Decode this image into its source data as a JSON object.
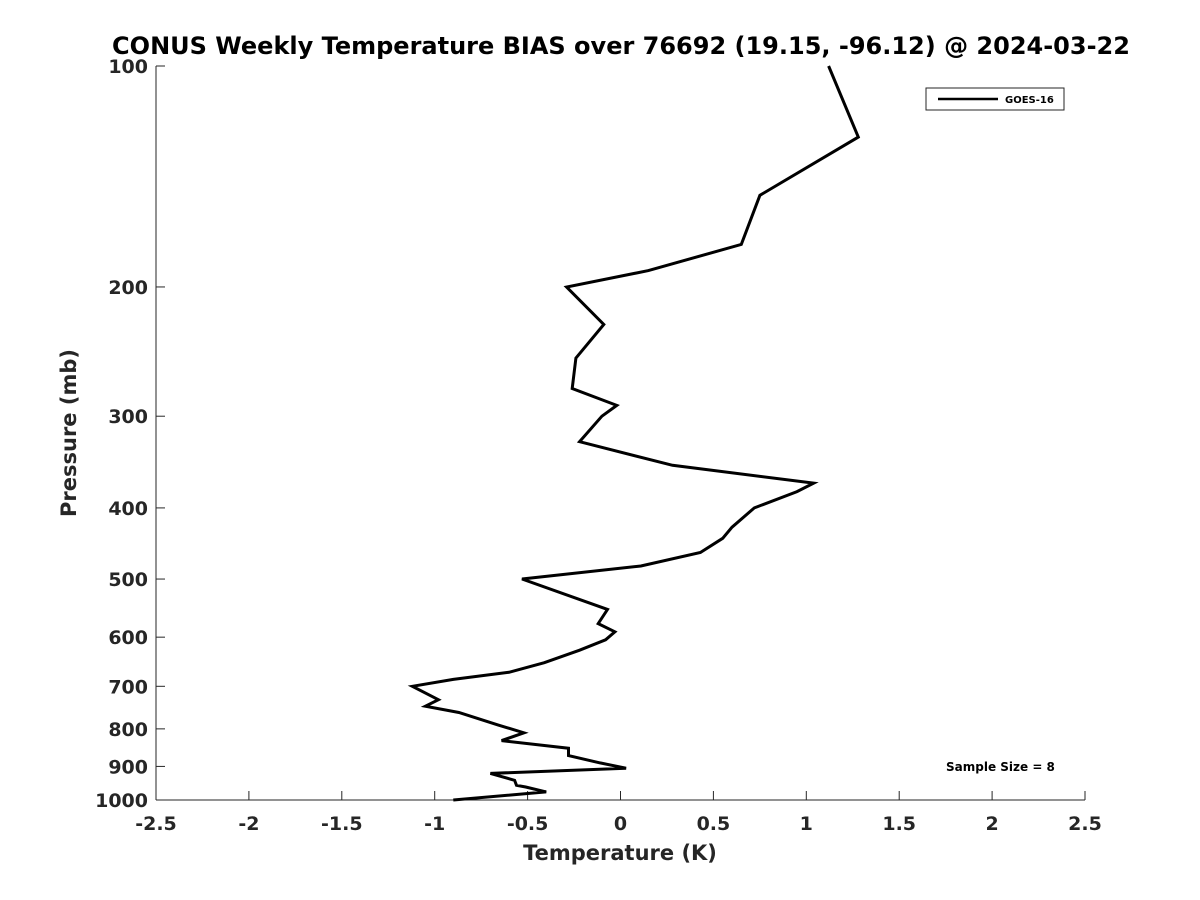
{
  "chart_data": {
    "type": "line",
    "title": "CONUS Weekly Temperature BIAS over 76692 (19.15, -96.12) @ 2024-03-22",
    "xlabel": "Temperature (K)",
    "ylabel": "Pressure (mb)",
    "xlim": [
      -2.5,
      2.5
    ],
    "ylim": [
      1000,
      100
    ],
    "y_scale": "log",
    "y_reversed": true,
    "x_ticks": [
      "-2.5",
      "-2",
      "-1.5",
      "-1",
      "-0.5",
      "0",
      "0.5",
      "1",
      "1.5",
      "2",
      "2.5"
    ],
    "x_tick_values": [
      -2.5,
      -2,
      -1.5,
      -1,
      -0.5,
      0,
      0.5,
      1,
      1.5,
      2,
      2.5
    ],
    "y_ticks": [
      "100",
      "200",
      "300",
      "400",
      "500",
      "600",
      "700",
      "800",
      "900",
      "1000"
    ],
    "y_tick_values": [
      100,
      200,
      300,
      400,
      500,
      600,
      700,
      800,
      900,
      1000
    ],
    "grid": false,
    "legend_position": "top-right",
    "series": [
      {
        "name": "GOES-16",
        "color": "#000000",
        "points": [
          {
            "x": 1.12,
            "y": 100
          },
          {
            "x": 1.28,
            "y": 125
          },
          {
            "x": 0.75,
            "y": 150
          },
          {
            "x": 0.65,
            "y": 175
          },
          {
            "x": 0.15,
            "y": 190
          },
          {
            "x": -0.29,
            "y": 200
          },
          {
            "x": -0.09,
            "y": 225
          },
          {
            "x": -0.24,
            "y": 250
          },
          {
            "x": -0.26,
            "y": 275
          },
          {
            "x": -0.02,
            "y": 290
          },
          {
            "x": -0.1,
            "y": 300
          },
          {
            "x": -0.22,
            "y": 325
          },
          {
            "x": 0.28,
            "y": 350
          },
          {
            "x": 1.04,
            "y": 370
          },
          {
            "x": 0.95,
            "y": 380
          },
          {
            "x": 0.72,
            "y": 400
          },
          {
            "x": 0.6,
            "y": 425
          },
          {
            "x": 0.55,
            "y": 440
          },
          {
            "x": 0.43,
            "y": 460
          },
          {
            "x": 0.11,
            "y": 480
          },
          {
            "x": -0.53,
            "y": 500
          },
          {
            "x": -0.07,
            "y": 550
          },
          {
            "x": -0.12,
            "y": 575
          },
          {
            "x": -0.03,
            "y": 590
          },
          {
            "x": -0.08,
            "y": 605
          },
          {
            "x": -0.22,
            "y": 625
          },
          {
            "x": -0.41,
            "y": 650
          },
          {
            "x": -0.6,
            "y": 670
          },
          {
            "x": -0.9,
            "y": 685
          },
          {
            "x": -1.12,
            "y": 700
          },
          {
            "x": -0.98,
            "y": 730
          },
          {
            "x": -1.05,
            "y": 745
          },
          {
            "x": -0.87,
            "y": 760
          },
          {
            "x": -0.66,
            "y": 790
          },
          {
            "x": -0.52,
            "y": 810
          },
          {
            "x": -0.64,
            "y": 830
          },
          {
            "x": -0.28,
            "y": 850
          },
          {
            "x": -0.28,
            "y": 870
          },
          {
            "x": -0.11,
            "y": 890
          },
          {
            "x": 0.03,
            "y": 905
          },
          {
            "x": -0.7,
            "y": 920
          },
          {
            "x": -0.57,
            "y": 940
          },
          {
            "x": -0.56,
            "y": 955
          },
          {
            "x": -0.51,
            "y": 960
          },
          {
            "x": -0.4,
            "y": 975
          },
          {
            "x": -0.9,
            "y": 1000
          }
        ]
      }
    ],
    "annotations": [
      "Sample Size = 8"
    ]
  }
}
